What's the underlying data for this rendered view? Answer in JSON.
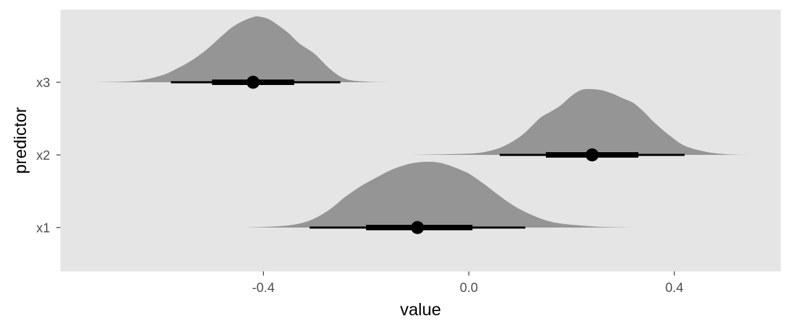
{
  "chart_data": {
    "type": "halfeye",
    "title": "",
    "xlabel": "value",
    "ylabel": "predictor",
    "xlim": [
      -0.795,
      0.607
    ],
    "x_ticks": [
      -0.4,
      0.0,
      0.4
    ],
    "x_tick_labels": [
      "-0.4",
      "0.0",
      "0.4"
    ],
    "categories": [
      "x1",
      "x2",
      "x3"
    ],
    "grid": false,
    "legend": "none",
    "series": [
      {
        "category": "x1",
        "point": -0.1,
        "interval_66": [
          -0.2,
          0.007
        ],
        "interval_95": [
          -0.31,
          0.11
        ],
        "density_range": [
          -0.435,
          0.32
        ],
        "density_x": [
          -0.435,
          -0.37,
          -0.33,
          -0.3,
          -0.27,
          -0.24,
          -0.21,
          -0.18,
          -0.15,
          -0.12,
          -0.1,
          -0.08,
          -0.06,
          -0.04,
          -0.02,
          0.0,
          0.03,
          0.06,
          0.09,
          0.12,
          0.15,
          0.18,
          0.22,
          0.26,
          0.32
        ],
        "density_y": [
          0.0,
          0.02,
          0.06,
          0.14,
          0.28,
          0.47,
          0.63,
          0.76,
          0.88,
          0.96,
          0.99,
          1.0,
          0.99,
          0.95,
          0.89,
          0.82,
          0.66,
          0.48,
          0.32,
          0.2,
          0.11,
          0.06,
          0.03,
          0.01,
          0.0
        ]
      },
      {
        "category": "x2",
        "point": 0.24,
        "interval_66": [
          0.15,
          0.33
        ],
        "interval_95": [
          0.06,
          0.42
        ],
        "density_range": [
          -0.11,
          0.545
        ],
        "density_x": [
          -0.11,
          0.0,
          0.04,
          0.07,
          0.1,
          0.12,
          0.14,
          0.16,
          0.18,
          0.2,
          0.22,
          0.24,
          0.26,
          0.28,
          0.3,
          0.32,
          0.34,
          0.36,
          0.39,
          0.42,
          0.46,
          0.5,
          0.545
        ],
        "density_y": [
          0.0,
          0.02,
          0.06,
          0.14,
          0.28,
          0.42,
          0.57,
          0.66,
          0.76,
          0.9,
          0.99,
          1.0,
          0.98,
          0.93,
          0.86,
          0.79,
          0.66,
          0.5,
          0.3,
          0.14,
          0.05,
          0.01,
          0.0
        ]
      },
      {
        "category": "x3",
        "point": -0.42,
        "interval_66": [
          -0.5,
          -0.34
        ],
        "interval_95": [
          -0.58,
          -0.25
        ],
        "density_range": [
          -0.73,
          -0.11
        ],
        "density_x": [
          -0.73,
          -0.65,
          -0.6,
          -0.57,
          -0.54,
          -0.51,
          -0.48,
          -0.46,
          -0.44,
          -0.42,
          -0.41,
          -0.39,
          -0.37,
          -0.35,
          -0.33,
          -0.3,
          -0.27,
          -0.24,
          -0.2,
          -0.15,
          -0.11
        ],
        "density_y": [
          0.0,
          0.02,
          0.1,
          0.2,
          0.33,
          0.5,
          0.71,
          0.84,
          0.93,
          0.99,
          1.0,
          0.96,
          0.86,
          0.74,
          0.59,
          0.43,
          0.2,
          0.05,
          0.01,
          0.0,
          0.0
        ]
      }
    ],
    "colors": {
      "panel_background": "#e5e5e5",
      "density_fill": "#959595",
      "interval": "#000000",
      "point": "#000000",
      "tick_label": "#4d4d4d",
      "tick_mark": "#333333",
      "axis_title": "#000000"
    }
  }
}
